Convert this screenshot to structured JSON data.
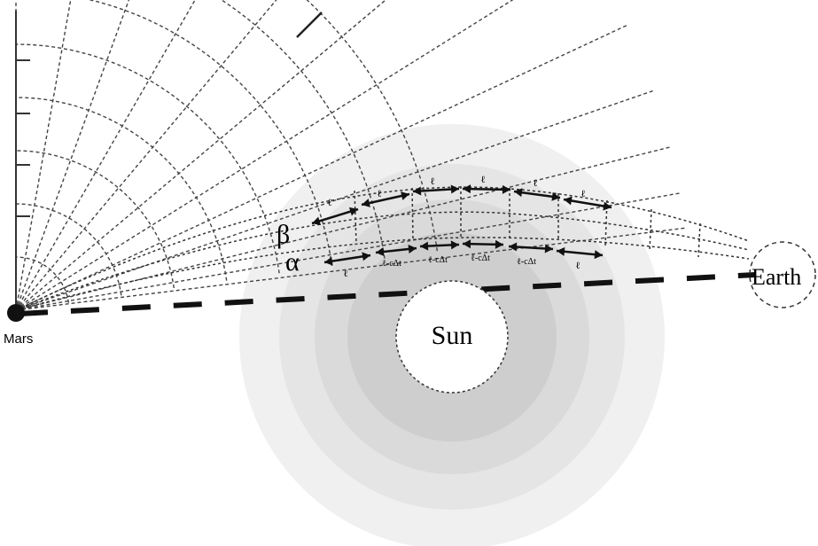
{
  "labels": {
    "mars": "Mars",
    "earth": "Earth",
    "sun": "Sun",
    "beta": "β",
    "alpha": "α",
    "segment_l": "ℓ",
    "segment_l_short": "ℓ-cΔt"
  },
  "colors": {
    "ring_1": "#f0f0f0",
    "ring_2": "#e4e4e4",
    "ring_3": "#d8d8d8",
    "ring_4": "#cccccc",
    "sun_fill": "#ffffff",
    "line": "#222222",
    "grid": "#444444"
  }
}
